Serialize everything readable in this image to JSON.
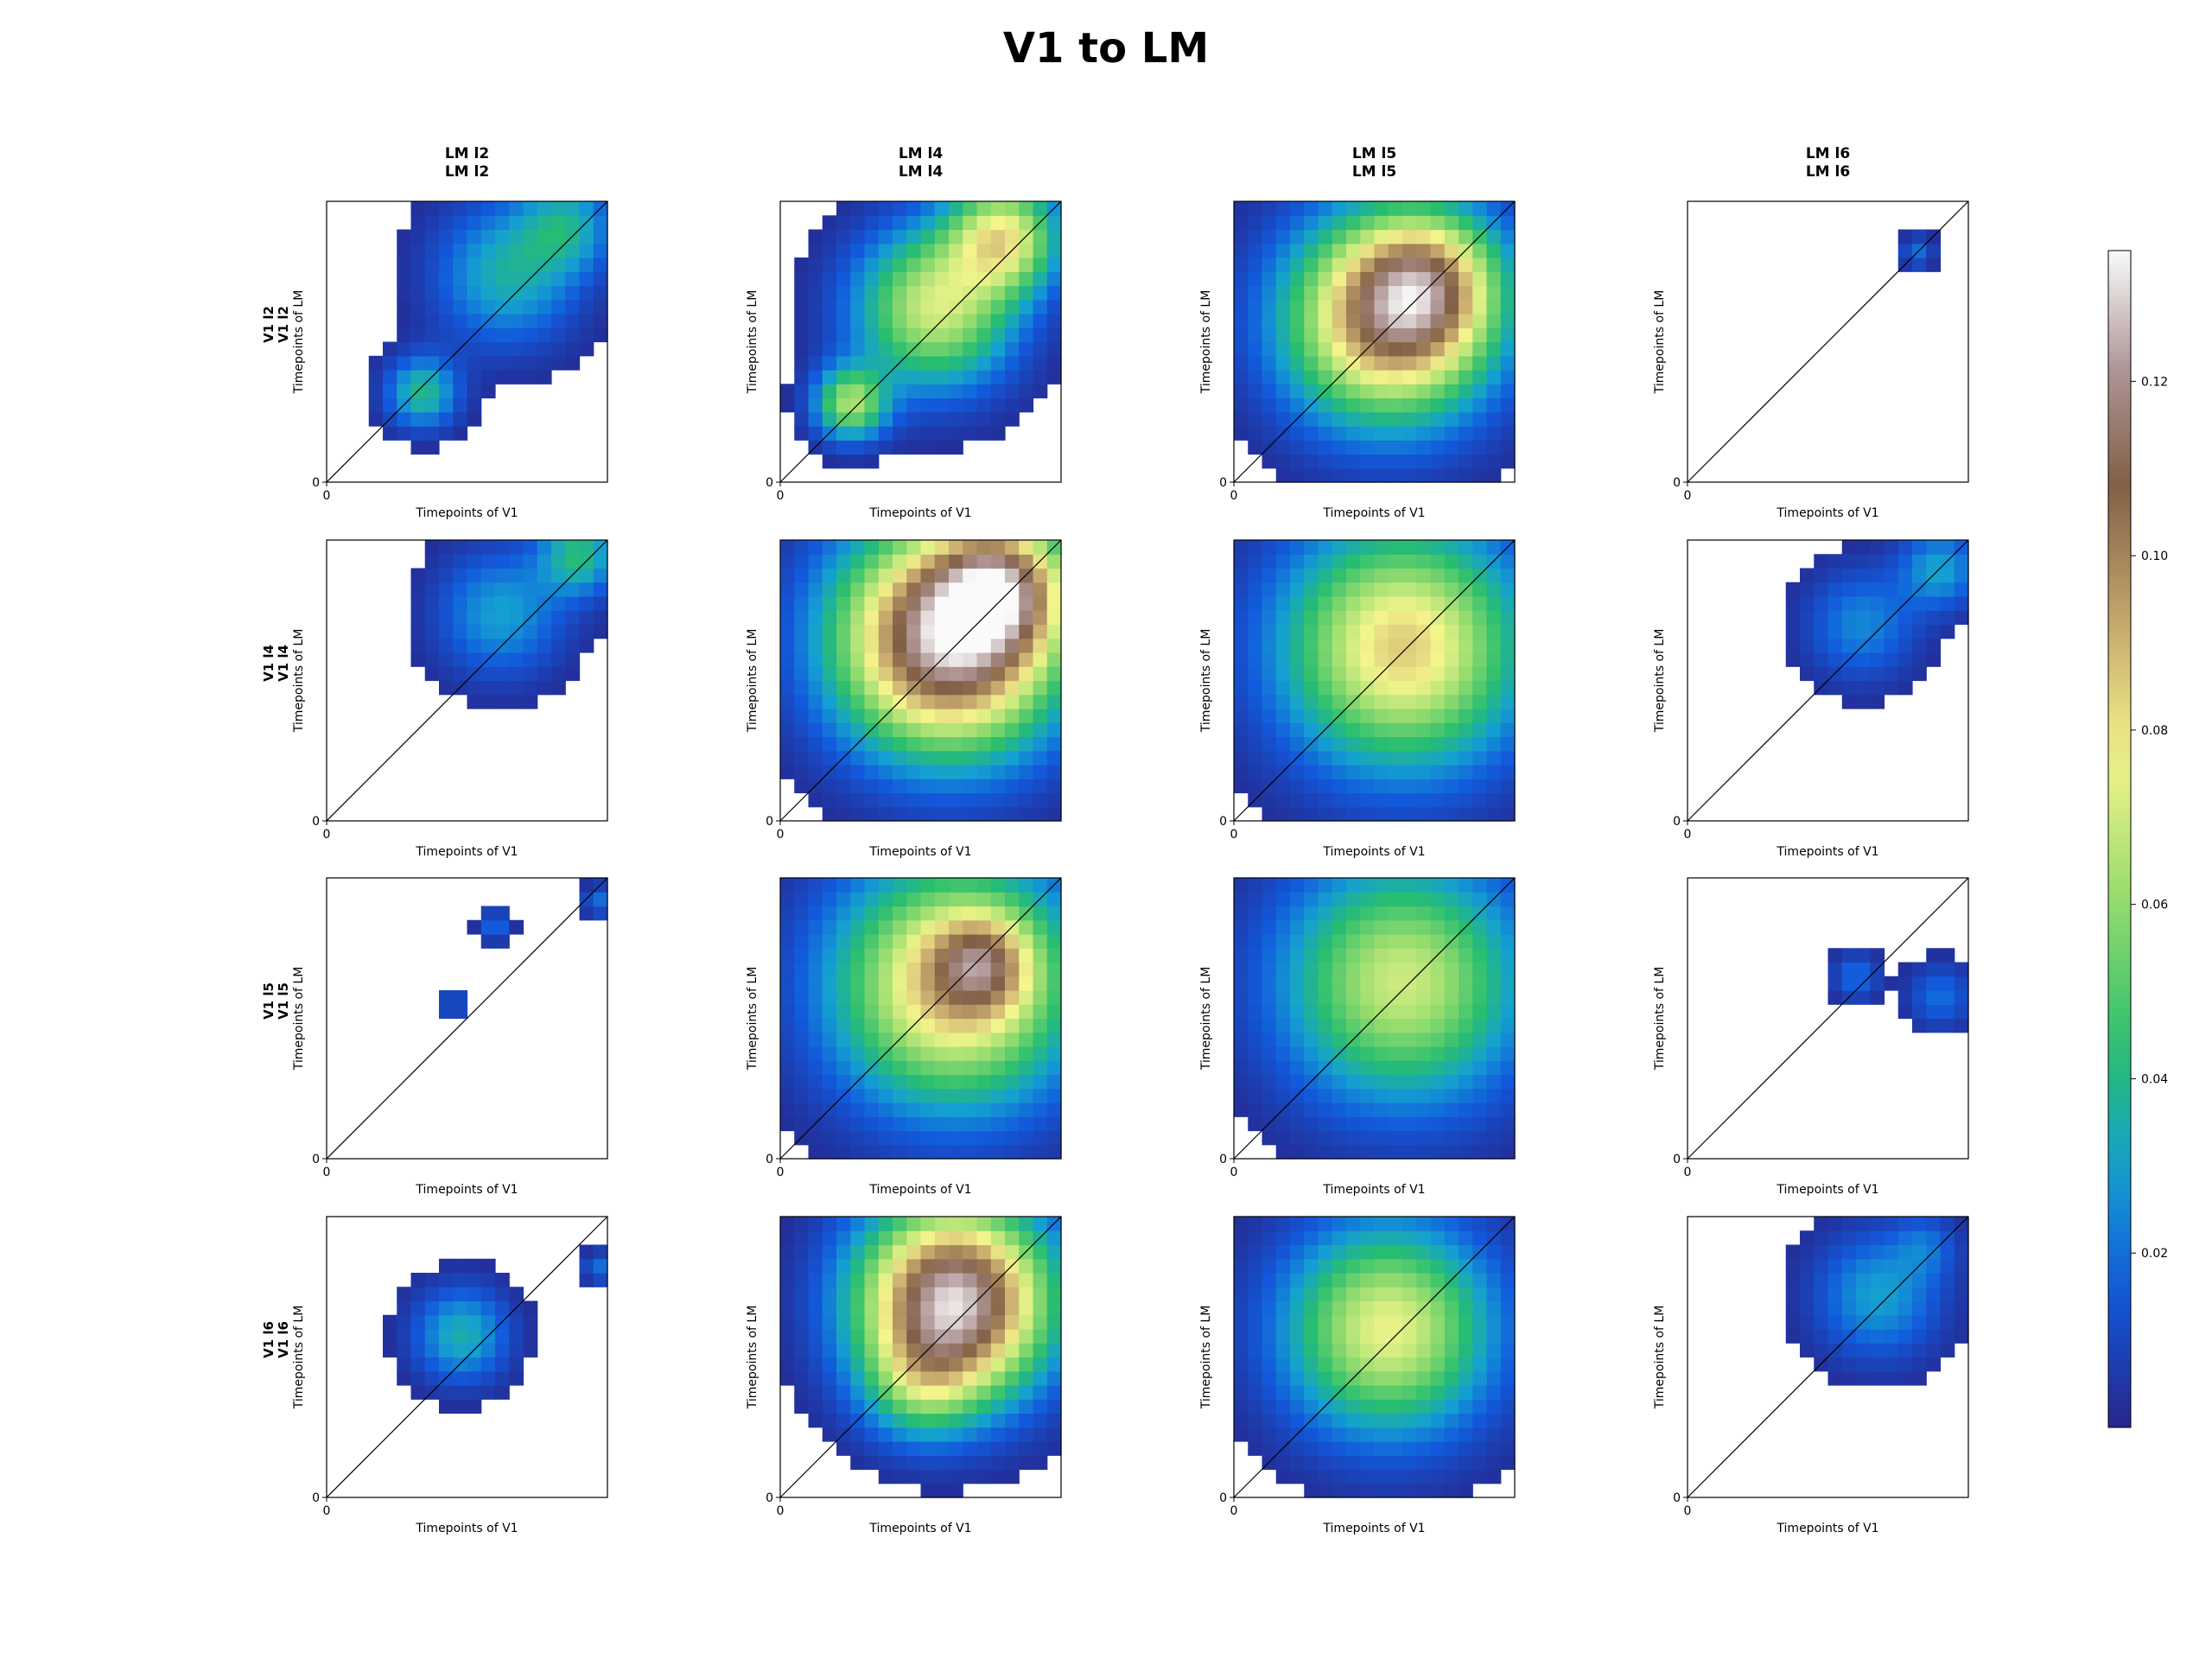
{
  "figure": {
    "title": "V1 to LM",
    "colormap": "gist_earth (reversed-like): dark blue → blue → green → yellow → brown → white"
  },
  "chart_data": {
    "type": "heatmap",
    "title": "V1 to LM",
    "grid_rows": 4,
    "grid_cols": 4,
    "col_titles": [
      {
        "line1": "LM l2",
        "line2": "LM l2"
      },
      {
        "line1": "LM l4",
        "line2": "LM l4"
      },
      {
        "line1": "LM l5",
        "line2": "LM l5"
      },
      {
        "line1": "LM l6",
        "line2": "LM l6"
      }
    ],
    "row_titles": [
      {
        "line1": "V1 l2",
        "line2": "V1 l2"
      },
      {
        "line1": "V1 l4",
        "line2": "V1 l4"
      },
      {
        "line1": "V1 l5",
        "line2": "V1 l5"
      },
      {
        "line1": "V1 l6",
        "line2": "V1 l6"
      }
    ],
    "xlabel": "Timepoints of V1",
    "ylabel": "Timepoints of LM",
    "origin_tick": "0",
    "diagonal_line": true,
    "grid_resolution": 20,
    "colorbar": {
      "range": [
        0,
        0.135
      ],
      "ticks": [
        "0.02",
        "0.04",
        "0.06",
        "0.08",
        "0.10",
        "0.12"
      ],
      "tick_values": [
        0.02,
        0.04,
        0.06,
        0.08,
        0.1,
        0.12
      ]
    },
    "threshold": 0.003,
    "panels": [
      {
        "row": 0,
        "col": 0,
        "blobs": [
          {
            "cx": 0.64,
            "cy": 0.74,
            "w": 0.18,
            "amp": 0.035
          },
          {
            "cx": 0.34,
            "cy": 0.32,
            "w": 0.09,
            "amp": 0.04
          },
          {
            "cx": 0.86,
            "cy": 0.92,
            "w": 0.12,
            "amp": 0.03
          }
        ]
      },
      {
        "row": 0,
        "col": 1,
        "blobs": [
          {
            "cx": 0.55,
            "cy": 0.62,
            "w": 0.2,
            "amp": 0.07
          },
          {
            "cx": 0.8,
            "cy": 0.88,
            "w": 0.14,
            "amp": 0.07
          },
          {
            "cx": 0.25,
            "cy": 0.28,
            "w": 0.09,
            "amp": 0.06
          }
        ]
      },
      {
        "row": 0,
        "col": 2,
        "blobs": [
          {
            "cx": 0.55,
            "cy": 0.58,
            "w": 0.26,
            "amp": 0.1
          },
          {
            "cx": 0.7,
            "cy": 0.72,
            "w": 0.18,
            "amp": 0.05
          }
        ]
      },
      {
        "row": 0,
        "col": 3,
        "blobs": [
          {
            "cx": 0.82,
            "cy": 0.82,
            "w": 0.04,
            "amp": 0.02
          }
        ]
      },
      {
        "row": 1,
        "col": 0,
        "blobs": [
          {
            "cx": 0.62,
            "cy": 0.74,
            "w": 0.16,
            "amp": 0.03
          },
          {
            "cx": 0.9,
            "cy": 0.95,
            "w": 0.1,
            "amp": 0.04
          }
        ]
      },
      {
        "row": 1,
        "col": 1,
        "blobs": [
          {
            "cx": 0.6,
            "cy": 0.65,
            "w": 0.28,
            "amp": 0.13
          },
          {
            "cx": 0.8,
            "cy": 0.85,
            "w": 0.16,
            "amp": 0.06
          }
        ]
      },
      {
        "row": 1,
        "col": 2,
        "blobs": [
          {
            "cx": 0.6,
            "cy": 0.62,
            "w": 0.3,
            "amp": 0.085
          }
        ]
      },
      {
        "row": 1,
        "col": 3,
        "blobs": [
          {
            "cx": 0.62,
            "cy": 0.7,
            "w": 0.14,
            "amp": 0.025
          },
          {
            "cx": 0.9,
            "cy": 0.9,
            "w": 0.1,
            "amp": 0.03
          }
        ]
      },
      {
        "row": 2,
        "col": 0,
        "blobs": [
          {
            "cx": 0.6,
            "cy": 0.83,
            "w": 0.04,
            "amp": 0.02
          },
          {
            "cx": 0.45,
            "cy": 0.55,
            "w": 0.04,
            "amp": 0.015
          },
          {
            "cx": 0.97,
            "cy": 0.92,
            "w": 0.04,
            "amp": 0.02
          }
        ]
      },
      {
        "row": 2,
        "col": 1,
        "blobs": [
          {
            "cx": 0.62,
            "cy": 0.62,
            "w": 0.3,
            "amp": 0.09
          },
          {
            "cx": 0.72,
            "cy": 0.7,
            "w": 0.12,
            "amp": 0.04
          }
        ]
      },
      {
        "row": 2,
        "col": 2,
        "blobs": [
          {
            "cx": 0.6,
            "cy": 0.63,
            "w": 0.3,
            "amp": 0.07
          }
        ]
      },
      {
        "row": 2,
        "col": 3,
        "blobs": [
          {
            "cx": 0.6,
            "cy": 0.65,
            "w": 0.06,
            "amp": 0.02
          },
          {
            "cx": 0.9,
            "cy": 0.58,
            "w": 0.08,
            "amp": 0.02
          }
        ]
      },
      {
        "row": 3,
        "col": 0,
        "blobs": [
          {
            "cx": 0.48,
            "cy": 0.58,
            "w": 0.12,
            "amp": 0.035
          },
          {
            "cx": 0.97,
            "cy": 0.82,
            "w": 0.04,
            "amp": 0.02
          }
        ]
      },
      {
        "row": 3,
        "col": 1,
        "blobs": [
          {
            "cx": 0.62,
            "cy": 0.7,
            "w": 0.24,
            "amp": 0.13
          },
          {
            "cx": 0.5,
            "cy": 0.4,
            "w": 0.14,
            "amp": 0.03
          }
        ]
      },
      {
        "row": 3,
        "col": 2,
        "blobs": [
          {
            "cx": 0.55,
            "cy": 0.6,
            "w": 0.26,
            "amp": 0.075
          }
        ]
      },
      {
        "row": 3,
        "col": 3,
        "blobs": [
          {
            "cx": 0.68,
            "cy": 0.72,
            "w": 0.16,
            "amp": 0.03
          },
          {
            "cx": 0.85,
            "cy": 0.9,
            "w": 0.08,
            "amp": 0.015
          }
        ]
      }
    ]
  }
}
